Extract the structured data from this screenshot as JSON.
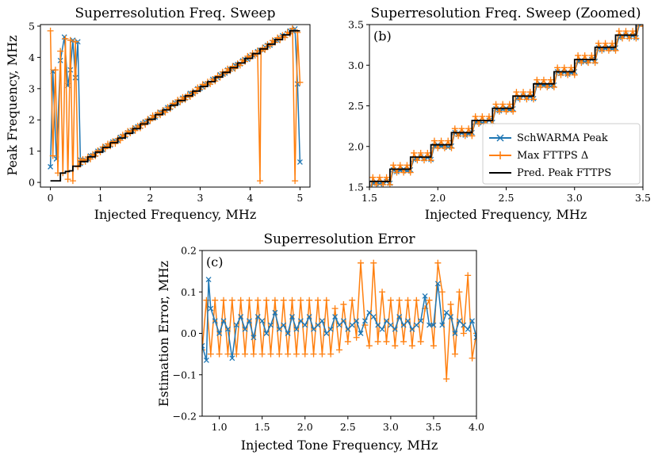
{
  "colors": {
    "schwarma": "#1f77b4",
    "fttps": "#ff7f0e",
    "pred": "#000000"
  },
  "chart_data": [
    {
      "id": "a",
      "type": "line",
      "title": "Superresolution Freq. Sweep",
      "xlabel": "Injected Frequency, MHz",
      "ylabel": "Peak Frequency, MHz",
      "xlim": [
        -0.2,
        5.2
      ],
      "ylim": [
        -0.15,
        5.05
      ],
      "xticks": [
        0,
        1,
        2,
        3,
        4,
        5
      ],
      "xticklabels": [
        "0",
        "1",
        "2",
        "3",
        "4",
        "5"
      ],
      "yticks": [
        0,
        1,
        2,
        3,
        4,
        5
      ],
      "yticklabels": [
        "0",
        "1",
        "2",
        "3",
        "4",
        "5"
      ],
      "grid": false,
      "anomalies": {
        "schwarma": [
          [
            0.0,
            0.5
          ],
          [
            0.05,
            3.55
          ],
          [
            0.12,
            0.75
          ],
          [
            0.2,
            3.9
          ],
          [
            0.28,
            4.65
          ],
          [
            0.35,
            3.1
          ],
          [
            0.4,
            3.6
          ],
          [
            0.45,
            4.55
          ],
          [
            0.5,
            3.35
          ],
          [
            0.55,
            4.5
          ],
          [
            0.6,
            0.72
          ],
          [
            4.95,
            3.15
          ],
          [
            5.0,
            0.65
          ]
        ],
        "fttps": [
          [
            0.0,
            4.85
          ],
          [
            0.05,
            0.85
          ],
          [
            0.1,
            3.6
          ],
          [
            0.15,
            0.3
          ],
          [
            0.2,
            4.2
          ],
          [
            0.25,
            0.3
          ],
          [
            0.3,
            4.6
          ],
          [
            0.35,
            0.1
          ],
          [
            0.4,
            4.55
          ],
          [
            0.45,
            0.05
          ],
          [
            0.5,
            4.5
          ],
          [
            0.55,
            0.5
          ],
          [
            0.6,
            0.7
          ],
          [
            4.2,
            0.05
          ],
          [
            4.22,
            4.2
          ],
          [
            4.9,
            0.05
          ],
          [
            4.95,
            4.8
          ],
          [
            5.0,
            3.2
          ]
        ]
      },
      "series": [
        {
          "name": "SchWARMA Peak",
          "style": "line-x",
          "color_key": "schwarma"
        },
        {
          "name": "Max FTTPS Δ",
          "style": "line-plus",
          "color_key": "fttps"
        },
        {
          "name": "Pred. Peak FTTPS",
          "style": "step",
          "color_key": "pred"
        }
      ]
    },
    {
      "id": "b",
      "type": "line",
      "title": "Superresolution Freq. Sweep (Zoomed)",
      "panel_label": "(b)",
      "xlabel": "Injected Frequency, MHz",
      "ylabel": "",
      "xlim": [
        1.5,
        3.5
      ],
      "ylim": [
        1.5,
        3.5
      ],
      "xticks": [
        1.5,
        2.0,
        2.5,
        3.0,
        3.5
      ],
      "xticklabels": [
        "1.5",
        "2.0",
        "2.5",
        "3.0",
        "3.5"
      ],
      "yticks": [
        1.5,
        2.0,
        2.5,
        3.0,
        3.5
      ],
      "yticklabels": [
        "1.5",
        "2.0",
        "2.5",
        "3.0",
        "3.5"
      ],
      "grid": false,
      "legend_position": "lower-right",
      "series": [
        {
          "name": "SchWARMA Peak",
          "style": "line-x",
          "color_key": "schwarma"
        },
        {
          "name": "Max FTTPS Δ",
          "style": "line-plus",
          "color_key": "fttps"
        },
        {
          "name": "Pred. Peak FTTPS",
          "style": "step",
          "color_key": "pred"
        }
      ]
    },
    {
      "id": "c",
      "type": "line",
      "title": "Superresolution Error",
      "panel_label": "(c)",
      "xlabel": "Injected Tone Frequency, MHz",
      "ylabel": "Estimation Error, MHz",
      "xlim": [
        0.8,
        4.0
      ],
      "ylim": [
        -0.2,
        0.2
      ],
      "xticks": [
        1.0,
        1.5,
        2.0,
        2.5,
        3.0,
        3.5,
        4.0
      ],
      "xticklabels": [
        "1.0",
        "1.5",
        "2.0",
        "2.5",
        "3.0",
        "3.5",
        "4.0"
      ],
      "yticks": [
        -0.2,
        -0.1,
        0.0,
        0.1,
        0.2
      ],
      "yticklabels": [
        "−0.2",
        "−0.1",
        "0.0",
        "0.1",
        "0.2"
      ],
      "grid": false,
      "series": [
        {
          "name": "SchWARMA Peak",
          "style": "line-x",
          "color_key": "schwarma",
          "x": [
            0.8,
            0.85,
            0.875,
            0.9,
            0.95,
            1.0,
            1.05,
            1.1,
            1.15,
            1.2,
            1.25,
            1.3,
            1.35,
            1.4,
            1.45,
            1.5,
            1.55,
            1.6,
            1.65,
            1.7,
            1.75,
            1.8,
            1.85,
            1.9,
            1.95,
            2.0,
            2.05,
            2.1,
            2.15,
            2.2,
            2.25,
            2.3,
            2.35,
            2.4,
            2.45,
            2.5,
            2.55,
            2.6,
            2.65,
            2.7,
            2.75,
            2.8,
            2.85,
            2.9,
            2.95,
            3.0,
            3.05,
            3.1,
            3.15,
            3.2,
            3.25,
            3.3,
            3.35,
            3.4,
            3.45,
            3.5,
            3.55,
            3.6,
            3.65,
            3.7,
            3.75,
            3.8,
            3.85,
            3.9,
            3.95,
            4.0
          ],
          "y": [
            -0.03,
            -0.065,
            0.13,
            0.06,
            0.03,
            0.0,
            0.03,
            0.01,
            -0.06,
            0.02,
            0.04,
            0.01,
            0.03,
            -0.01,
            0.04,
            0.03,
            0.0,
            0.02,
            0.05,
            0.01,
            0.02,
            0.0,
            0.04,
            0.01,
            0.03,
            0.02,
            0.04,
            0.01,
            0.02,
            0.03,
            0.0,
            0.01,
            0.04,
            0.02,
            0.03,
            0.01,
            0.02,
            0.03,
            0.0,
            0.03,
            0.05,
            0.04,
            0.02,
            0.01,
            0.03,
            0.02,
            0.01,
            0.04,
            0.02,
            0.03,
            0.01,
            0.02,
            0.03,
            0.09,
            0.02,
            0.02,
            0.12,
            0.02,
            0.05,
            0.04,
            0.0,
            0.03,
            0.02,
            0.01,
            0.03,
            -0.01
          ]
        },
        {
          "name": "Max FTTPS Δ",
          "style": "line-plus",
          "color_key": "fttps",
          "x": [
            0.8,
            0.85,
            0.9,
            0.95,
            1.0,
            1.05,
            1.1,
            1.15,
            1.2,
            1.25,
            1.3,
            1.35,
            1.4,
            1.45,
            1.5,
            1.55,
            1.6,
            1.65,
            1.7,
            1.75,
            1.8,
            1.85,
            1.9,
            1.95,
            2.0,
            2.05,
            2.1,
            2.15,
            2.2,
            2.25,
            2.3,
            2.35,
            2.4,
            2.45,
            2.5,
            2.55,
            2.6,
            2.65,
            2.7,
            2.75,
            2.8,
            2.85,
            2.9,
            2.95,
            3.0,
            3.05,
            3.1,
            3.15,
            3.2,
            3.25,
            3.3,
            3.35,
            3.4,
            3.45,
            3.5,
            3.55,
            3.6,
            3.65,
            3.7,
            3.75,
            3.8,
            3.85,
            3.9,
            3.95,
            4.0
          ],
          "y": [
            -0.04,
            0.08,
            -0.05,
            0.08,
            -0.05,
            0.08,
            -0.05,
            0.08,
            -0.05,
            0.08,
            -0.05,
            0.08,
            -0.05,
            0.08,
            -0.05,
            0.08,
            -0.05,
            0.08,
            -0.05,
            0.08,
            -0.05,
            0.08,
            -0.05,
            0.08,
            -0.05,
            0.08,
            -0.05,
            0.08,
            -0.05,
            0.08,
            -0.05,
            0.06,
            -0.04,
            0.07,
            -0.02,
            0.08,
            -0.01,
            0.17,
            0.02,
            -0.03,
            0.17,
            -0.02,
            0.1,
            -0.02,
            0.08,
            -0.03,
            0.08,
            -0.02,
            0.08,
            -0.03,
            0.08,
            -0.02,
            0.06,
            0.08,
            -0.03,
            0.17,
            0.1,
            -0.11,
            0.07,
            -0.05,
            0.1,
            0.0,
            0.14,
            -0.06,
            0.0
          ]
        }
      ]
    }
  ]
}
